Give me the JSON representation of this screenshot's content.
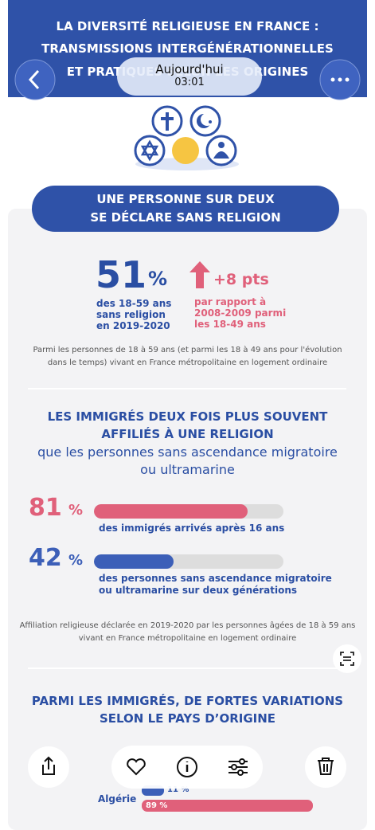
{
  "header": {
    "title_lines": [
      "LA DIVERSITÉ RELIGIEUSE EN FRANCE :",
      "TRANSMISSIONS INTERGÉNÉRATIONNELLES",
      "ET PRATIQUES SELON LES ORIGINES"
    ]
  },
  "viewer": {
    "date": "Aujourd'hui",
    "time": "03:01"
  },
  "section1": {
    "banner": [
      "UNE PERSONNE SUR DEUX",
      "SE DÉCLARE SANS RELIGION"
    ],
    "stat": {
      "value": 51,
      "unit": "%",
      "caption": [
        "des 18-59 ans",
        "sans religion",
        "en 2019-2020"
      ]
    },
    "change": {
      "text": "+8 pts",
      "caption": [
        "par rapport à",
        "2008-2009 parmi",
        "les 18-49 ans"
      ]
    },
    "note": [
      "Parmi les personnes de 18 à 59 ans (et parmi les 18 à 49 ans pour l'évolution",
      "dans le temps) vivant en France métropolitaine en logement ordinaire"
    ]
  },
  "section2": {
    "heading_bold": [
      "LES IMMIGRÉS DEUX FOIS PLUS SOUVENT",
      "AFFILIÉS À UNE RELIGION"
    ],
    "heading_regular": [
      "que les personnes sans ascendance migratoire",
      "ou ultramarine"
    ],
    "items": [
      {
        "value": 81,
        "unit": "%",
        "color": "#e0607a",
        "caption": [
          "des immigrés arrivés après 16 ans"
        ]
      },
      {
        "value": 42,
        "unit": "%",
        "color": "#3c5fb8",
        "caption": [
          "des personnes sans ascendance migratoire",
          "ou ultramarine sur deux générations"
        ]
      }
    ],
    "note": [
      "Affiliation religieuse déclarée en 2019-2020 par les personnes âgées de 18 à 59 ans",
      "vivant en France métropolitaine en logement ordinaire"
    ]
  },
  "section3": {
    "heading": [
      "PARMI LES IMMIGRÉS, DE FORTES VARIATIONS",
      "SELON LE PAYS D’ORIGINE"
    ],
    "rows": [
      {
        "label": "Algérie",
        "values": [
          11,
          89
        ],
        "value_labels": [
          "11 %",
          "89 %"
        ]
      }
    ]
  }
}
